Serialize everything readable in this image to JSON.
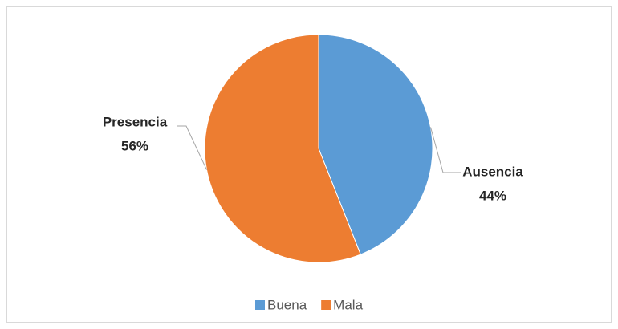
{
  "chart_data": {
    "type": "pie",
    "categories": [
      "Buena",
      "Mala"
    ],
    "labels": [
      "Ausencia",
      "Presencia"
    ],
    "values": [
      44,
      56
    ],
    "value_labels": [
      "44%",
      "56%"
    ],
    "colors": [
      "#5b9bd5",
      "#ed7d31"
    ],
    "legend": "bottom"
  }
}
